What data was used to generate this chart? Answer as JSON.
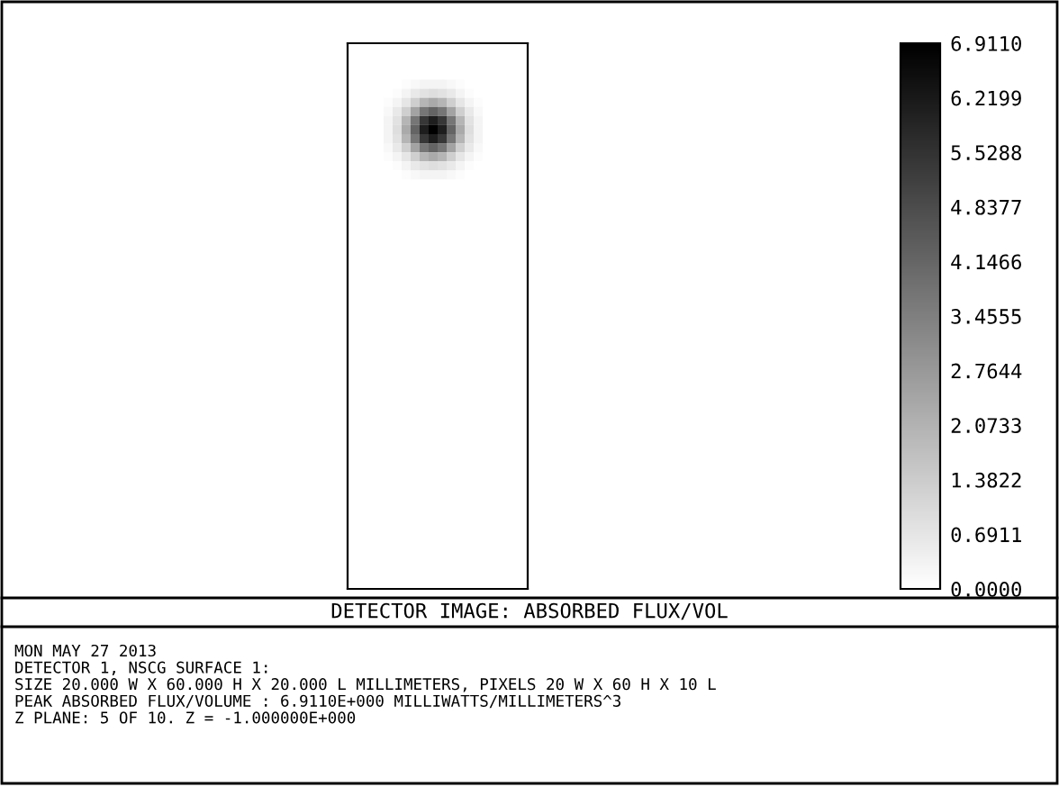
{
  "chart_data": {
    "type": "heatmap",
    "title": "DETECTOR IMAGE: ABSORBED FLUX/VOL",
    "annotations": [
      "MON MAY 27 2013",
      "DETECTOR 1, NSCG SURFACE 1:",
      "SIZE 20.000 W X 60.000 H X 20.000 L MILLIMETERS, PIXELS 20 W X 60 H X 10 L",
      "PEAK ABSORBED FLUX/VOLUME : 6.9110E+000 MILLIWATTS/MILLIMETERS^3",
      "Z PLANE: 5 OF 10. Z = -1.000000E+000"
    ],
    "categories": [
      null,
      null,
      null,
      null,
      null,
      null,
      null,
      null,
      null,
      null,
      null,
      null,
      null,
      null,
      null,
      null,
      null,
      null,
      null,
      null
    ],
    "y_categories": [
      null,
      null,
      null,
      null,
      null,
      null,
      null,
      null,
      null,
      null,
      null,
      null,
      null,
      null,
      null,
      null,
      null,
      null,
      null,
      null,
      null,
      null,
      null,
      null,
      null,
      null,
      null,
      null,
      null,
      null,
      null,
      null,
      null,
      null,
      null,
      null,
      null,
      null,
      null,
      null,
      null,
      null,
      null,
      null,
      null,
      null,
      null,
      null,
      null,
      null,
      null,
      null,
      null,
      null,
      null,
      null,
      null,
      null,
      null,
      null
    ],
    "clim": [
      0,
      6.911
    ],
    "cticks": [
      {
        "value": 0,
        "label": "0.0000"
      },
      0.6911,
      1.3822,
      2.0733,
      2.7644,
      3.4555,
      4.1466,
      4.8377,
      5.5288,
      6.2199,
      {
        "value": 6.911,
        "label": "6.9110"
      }
    ],
    "cells": [
      [
        0,
        0,
        0,
        0,
        0,
        0,
        0,
        0,
        0,
        0,
        0,
        0,
        0,
        0,
        0,
        0,
        0,
        0,
        0,
        0
      ],
      [
        0,
        0,
        0,
        0,
        0,
        0,
        0,
        0,
        0,
        0,
        0,
        0,
        0,
        0,
        0,
        0,
        0,
        0,
        0,
        0
      ],
      [
        0,
        0,
        0,
        0,
        0,
        0,
        0,
        0,
        0,
        0,
        0,
        0,
        0,
        0,
        0,
        0,
        0,
        0,
        0,
        0
      ],
      [
        0,
        0,
        0,
        0,
        0,
        0,
        0,
        0,
        0,
        0,
        0,
        0,
        0,
        0,
        0,
        0,
        0,
        0,
        0,
        0
      ],
      [
        0,
        0,
        0,
        0,
        0,
        0,
        0.1,
        0.2,
        0.3,
        0.3,
        0.3,
        0.2,
        0.1,
        0,
        0,
        0,
        0,
        0,
        0,
        0
      ],
      [
        0,
        0,
        0,
        0,
        0,
        0.1,
        0.3,
        0.6,
        0.8,
        0.9,
        0.8,
        0.6,
        0.3,
        0.1,
        0,
        0,
        0,
        0,
        0,
        0
      ],
      [
        0,
        0,
        0,
        0,
        0.1,
        0.3,
        0.7,
        1.3,
        2.0,
        2.3,
        2.0,
        1.3,
        0.7,
        0.3,
        0.1,
        0,
        0,
        0,
        0,
        0
      ],
      [
        0,
        0,
        0,
        0,
        0.2,
        0.6,
        1.3,
        2.5,
        3.7,
        4.2,
        3.7,
        2.5,
        1.3,
        0.6,
        0.2,
        0,
        0,
        0,
        0,
        0
      ],
      [
        0,
        0,
        0,
        0,
        0.3,
        0.8,
        2.0,
        3.7,
        5.4,
        6.1,
        5.4,
        3.7,
        2.0,
        0.8,
        0.3,
        0,
        0,
        0,
        0,
        0
      ],
      [
        0,
        0,
        0,
        0,
        0.3,
        0.9,
        2.3,
        4.2,
        6.1,
        6.911,
        6.1,
        4.2,
        2.3,
        0.9,
        0.3,
        0,
        0,
        0,
        0,
        0
      ],
      [
        0,
        0,
        0,
        0,
        0.3,
        0.8,
        2.0,
        3.7,
        5.4,
        6.1,
        5.4,
        3.7,
        2.0,
        0.8,
        0.3,
        0,
        0,
        0,
        0,
        0
      ],
      [
        0,
        0,
        0,
        0,
        0.2,
        0.6,
        1.3,
        2.5,
        3.7,
        4.2,
        3.7,
        2.5,
        1.3,
        0.6,
        0.2,
        0,
        0,
        0,
        0,
        0
      ],
      [
        0,
        0,
        0,
        0,
        0.1,
        0.3,
        0.7,
        1.3,
        2.0,
        2.3,
        2.0,
        1.3,
        0.7,
        0.3,
        0.1,
        0,
        0,
        0,
        0,
        0
      ],
      [
        0,
        0,
        0,
        0,
        0,
        0.1,
        0.3,
        0.6,
        0.8,
        0.9,
        0.8,
        0.6,
        0.3,
        0.1,
        0,
        0,
        0,
        0,
        0,
        0
      ],
      [
        0,
        0,
        0,
        0,
        0,
        0,
        0.1,
        0.2,
        0.3,
        0.3,
        0.3,
        0.2,
        0.1,
        0,
        0,
        0,
        0,
        0,
        0,
        0
      ],
      [
        0,
        0,
        0,
        0,
        0,
        0,
        0,
        0,
        0,
        0,
        0,
        0,
        0,
        0,
        0,
        0,
        0,
        0,
        0,
        0
      ],
      [
        0,
        0,
        0,
        0,
        0,
        0,
        0,
        0,
        0,
        0,
        0,
        0,
        0,
        0,
        0,
        0,
        0,
        0,
        0,
        0
      ],
      [
        0,
        0,
        0,
        0,
        0,
        0,
        0,
        0,
        0,
        0,
        0,
        0,
        0,
        0,
        0,
        0,
        0,
        0,
        0,
        0
      ],
      [
        0,
        0,
        0,
        0,
        0,
        0,
        0,
        0,
        0,
        0,
        0,
        0,
        0,
        0,
        0,
        0,
        0,
        0,
        0,
        0
      ],
      [
        0,
        0,
        0,
        0,
        0,
        0,
        0,
        0,
        0,
        0,
        0,
        0,
        0,
        0,
        0,
        0,
        0,
        0,
        0,
        0
      ],
      [
        0,
        0,
        0,
        0,
        0,
        0,
        0,
        0,
        0,
        0,
        0,
        0,
        0,
        0,
        0,
        0,
        0,
        0,
        0,
        0
      ],
      [
        0,
        0,
        0,
        0,
        0,
        0,
        0,
        0,
        0,
        0,
        0,
        0,
        0,
        0,
        0,
        0,
        0,
        0,
        0,
        0
      ],
      [
        0,
        0,
        0,
        0,
        0,
        0,
        0,
        0,
        0,
        0,
        0,
        0,
        0,
        0,
        0,
        0,
        0,
        0,
        0,
        0
      ],
      [
        0,
        0,
        0,
        0,
        0,
        0,
        0,
        0,
        0,
        0,
        0,
        0,
        0,
        0,
        0,
        0,
        0,
        0,
        0,
        0
      ],
      [
        0,
        0,
        0,
        0,
        0,
        0,
        0,
        0,
        0,
        0,
        0,
        0,
        0,
        0,
        0,
        0,
        0,
        0,
        0,
        0
      ],
      [
        0,
        0,
        0,
        0,
        0,
        0,
        0,
        0,
        0,
        0,
        0,
        0,
        0,
        0,
        0,
        0,
        0,
        0,
        0,
        0
      ],
      [
        0,
        0,
        0,
        0,
        0,
        0,
        0,
        0,
        0,
        0,
        0,
        0,
        0,
        0,
        0,
        0,
        0,
        0,
        0,
        0
      ],
      [
        0,
        0,
        0,
        0,
        0,
        0,
        0,
        0,
        0,
        0,
        0,
        0,
        0,
        0,
        0,
        0,
        0,
        0,
        0,
        0
      ],
      [
        0,
        0,
        0,
        0,
        0,
        0,
        0,
        0,
        0,
        0,
        0,
        0,
        0,
        0,
        0,
        0,
        0,
        0,
        0,
        0
      ],
      [
        0,
        0,
        0,
        0,
        0,
        0,
        0,
        0,
        0,
        0,
        0,
        0,
        0,
        0,
        0,
        0,
        0,
        0,
        0,
        0
      ],
      [
        0,
        0,
        0,
        0,
        0,
        0,
        0,
        0,
        0,
        0,
        0,
        0,
        0,
        0,
        0,
        0,
        0,
        0,
        0,
        0
      ],
      [
        0,
        0,
        0,
        0,
        0,
        0,
        0,
        0,
        0,
        0,
        0,
        0,
        0,
        0,
        0,
        0,
        0,
        0,
        0,
        0
      ],
      [
        0,
        0,
        0,
        0,
        0,
        0,
        0,
        0,
        0,
        0,
        0,
        0,
        0,
        0,
        0,
        0,
        0,
        0,
        0,
        0
      ],
      [
        0,
        0,
        0,
        0,
        0,
        0,
        0,
        0,
        0,
        0,
        0,
        0,
        0,
        0,
        0,
        0,
        0,
        0,
        0,
        0
      ],
      [
        0,
        0,
        0,
        0,
        0,
        0,
        0,
        0,
        0,
        0,
        0,
        0,
        0,
        0,
        0,
        0,
        0,
        0,
        0,
        0
      ],
      [
        0,
        0,
        0,
        0,
        0,
        0,
        0,
        0,
        0,
        0,
        0,
        0,
        0,
        0,
        0,
        0,
        0,
        0,
        0,
        0
      ],
      [
        0,
        0,
        0,
        0,
        0,
        0,
        0,
        0,
        0,
        0,
        0,
        0,
        0,
        0,
        0,
        0,
        0,
        0,
        0,
        0
      ],
      [
        0,
        0,
        0,
        0,
        0,
        0,
        0,
        0,
        0,
        0,
        0,
        0,
        0,
        0,
        0,
        0,
        0,
        0,
        0,
        0
      ],
      [
        0,
        0,
        0,
        0,
        0,
        0,
        0,
        0,
        0,
        0,
        0,
        0,
        0,
        0,
        0,
        0,
        0,
        0,
        0,
        0
      ],
      [
        0,
        0,
        0,
        0,
        0,
        0,
        0,
        0,
        0,
        0,
        0,
        0,
        0,
        0,
        0,
        0,
        0,
        0,
        0,
        0
      ],
      [
        0,
        0,
        0,
        0,
        0,
        0,
        0,
        0,
        0,
        0,
        0,
        0,
        0,
        0,
        0,
        0,
        0,
        0,
        0,
        0
      ],
      [
        0,
        0,
        0,
        0,
        0,
        0,
        0,
        0,
        0,
        0,
        0,
        0,
        0,
        0,
        0,
        0,
        0,
        0,
        0,
        0
      ],
      [
        0,
        0,
        0,
        0,
        0,
        0,
        0,
        0,
        0,
        0,
        0,
        0,
        0,
        0,
        0,
        0,
        0,
        0,
        0,
        0
      ],
      [
        0,
        0,
        0,
        0,
        0,
        0,
        0,
        0,
        0,
        0,
        0,
        0,
        0,
        0,
        0,
        0,
        0,
        0,
        0,
        0
      ],
      [
        0,
        0,
        0,
        0,
        0,
        0,
        0,
        0,
        0,
        0,
        0,
        0,
        0,
        0,
        0,
        0,
        0,
        0,
        0,
        0
      ],
      [
        0,
        0,
        0,
        0,
        0,
        0,
        0,
        0,
        0,
        0,
        0,
        0,
        0,
        0,
        0,
        0,
        0,
        0,
        0,
        0
      ],
      [
        0,
        0,
        0,
        0,
        0,
        0,
        0,
        0,
        0,
        0,
        0,
        0,
        0,
        0,
        0,
        0,
        0,
        0,
        0,
        0
      ],
      [
        0,
        0,
        0,
        0,
        0,
        0,
        0,
        0,
        0,
        0,
        0,
        0,
        0,
        0,
        0,
        0,
        0,
        0,
        0,
        0
      ],
      [
        0,
        0,
        0,
        0,
        0,
        0,
        0,
        0,
        0,
        0,
        0,
        0,
        0,
        0,
        0,
        0,
        0,
        0,
        0,
        0
      ],
      [
        0,
        0,
        0,
        0,
        0,
        0,
        0,
        0,
        0,
        0,
        0,
        0,
        0,
        0,
        0,
        0,
        0,
        0,
        0,
        0
      ],
      [
        0,
        0,
        0,
        0,
        0,
        0,
        0,
        0,
        0,
        0,
        0,
        0,
        0,
        0,
        0,
        0,
        0,
        0,
        0,
        0
      ],
      [
        0,
        0,
        0,
        0,
        0,
        0,
        0,
        0,
        0,
        0,
        0,
        0,
        0,
        0,
        0,
        0,
        0,
        0,
        0,
        0
      ],
      [
        0,
        0,
        0,
        0,
        0,
        0,
        0,
        0,
        0,
        0,
        0,
        0,
        0,
        0,
        0,
        0,
        0,
        0,
        0,
        0
      ],
      [
        0,
        0,
        0,
        0,
        0,
        0,
        0,
        0,
        0,
        0,
        0,
        0,
        0,
        0,
        0,
        0,
        0,
        0,
        0,
        0
      ],
      [
        0,
        0,
        0,
        0,
        0,
        0,
        0,
        0,
        0,
        0,
        0,
        0,
        0,
        0,
        0,
        0,
        0,
        0,
        0,
        0
      ],
      [
        0,
        0,
        0,
        0,
        0,
        0,
        0,
        0,
        0,
        0,
        0,
        0,
        0,
        0,
        0,
        0,
        0,
        0,
        0,
        0
      ],
      [
        0,
        0,
        0,
        0,
        0,
        0,
        0,
        0,
        0,
        0,
        0,
        0,
        0,
        0,
        0,
        0,
        0,
        0,
        0,
        0
      ],
      [
        0,
        0,
        0,
        0,
        0,
        0,
        0,
        0,
        0,
        0,
        0,
        0,
        0,
        0,
        0,
        0,
        0,
        0,
        0,
        0
      ],
      [
        0,
        0,
        0,
        0,
        0,
        0,
        0,
        0,
        0,
        0,
        0,
        0,
        0,
        0,
        0,
        0,
        0,
        0,
        0,
        0
      ],
      [
        0,
        0,
        0,
        0,
        0,
        0,
        0,
        0,
        0,
        0,
        0,
        0,
        0,
        0,
        0,
        0,
        0,
        0,
        0,
        0
      ]
    ]
  }
}
